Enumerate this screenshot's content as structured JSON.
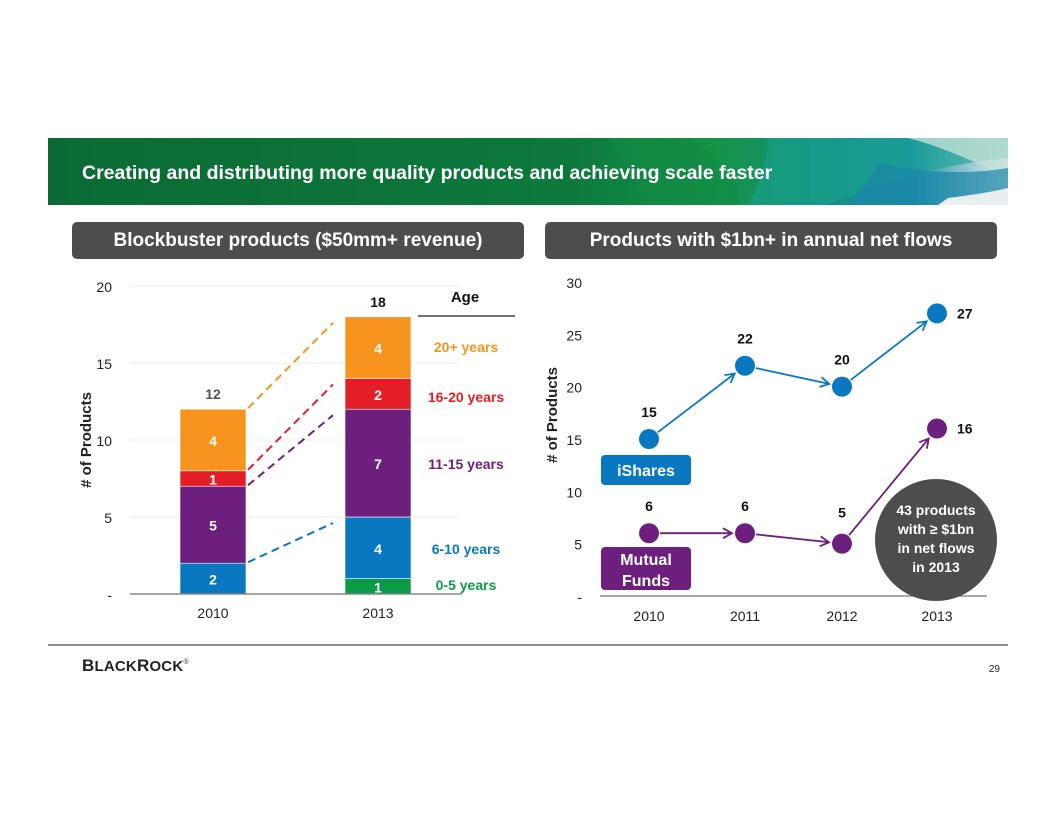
{
  "slide": {
    "title": "Creating and distributing more quality products and achieving scale faster",
    "page_number": "29",
    "logo": {
      "first": "B",
      "first_rest": "LACK",
      "second": "R",
      "second_rest": "OCK",
      "mark": "®"
    },
    "colors": {
      "banner_green": "#0d7a3c",
      "pill_gray": "#4d4d4f"
    }
  },
  "left_panel": {
    "header": "Blockbuster products ($50mm+ revenue)"
  },
  "right_panel": {
    "header": "Products with $1bn+ in annual net flows"
  },
  "chart_data": [
    {
      "type": "bar",
      "stacked": true,
      "title": "Blockbuster products ($50mm+ revenue)",
      "xlabel": "",
      "ylabel": "# of Products",
      "ylim": [
        0,
        20
      ],
      "yticks": [
        0,
        5,
        10,
        15,
        20
      ],
      "ytick_labels": [
        "-",
        "5",
        "10",
        "15",
        "20"
      ],
      "categories": [
        "2010",
        "2013"
      ],
      "totals": [
        12,
        18
      ],
      "legend_title": "Age",
      "legend_position": "right",
      "series": [
        {
          "name": "0-5 years",
          "color": "#0a9a48",
          "values": [
            0,
            1
          ]
        },
        {
          "name": "6-10 years",
          "color": "#0a78c0",
          "values": [
            2,
            4
          ]
        },
        {
          "name": "11-15 years",
          "color": "#6c1f7d",
          "values": [
            5,
            7
          ]
        },
        {
          "name": "16-20 years",
          "color": "#e31e26",
          "values": [
            1,
            2
          ]
        },
        {
          "name": "20+ years",
          "color": "#f7941e",
          "values": [
            4,
            4
          ]
        }
      ],
      "annotations": "Dashed connector lines link 2010 segment tops to 2013 segments (aging cohorts)"
    },
    {
      "type": "line",
      "title": "Products with $1bn+ in annual net flows",
      "xlabel": "",
      "ylabel": "# of Products",
      "ylim": [
        0,
        30
      ],
      "yticks": [
        0,
        5,
        10,
        15,
        20,
        25,
        30
      ],
      "ytick_labels": [
        "-",
        "5",
        "10",
        "15",
        "20",
        "25",
        "30"
      ],
      "x": [
        "2010",
        "2011",
        "2012",
        "2013"
      ],
      "series": [
        {
          "name": "iShares",
          "color": "#0a78c0",
          "values": [
            15,
            22,
            20,
            27
          ]
        },
        {
          "name": "Mutual Funds",
          "label_lines": [
            "Mutual",
            "Funds"
          ],
          "color": "#6c1f7d",
          "values": [
            6,
            6,
            5,
            16
          ]
        }
      ],
      "callout": {
        "lines": [
          "43 products",
          "with ≥ $1bn",
          "in net flows",
          "in 2013"
        ],
        "color": "#4d4d4f"
      }
    }
  ]
}
